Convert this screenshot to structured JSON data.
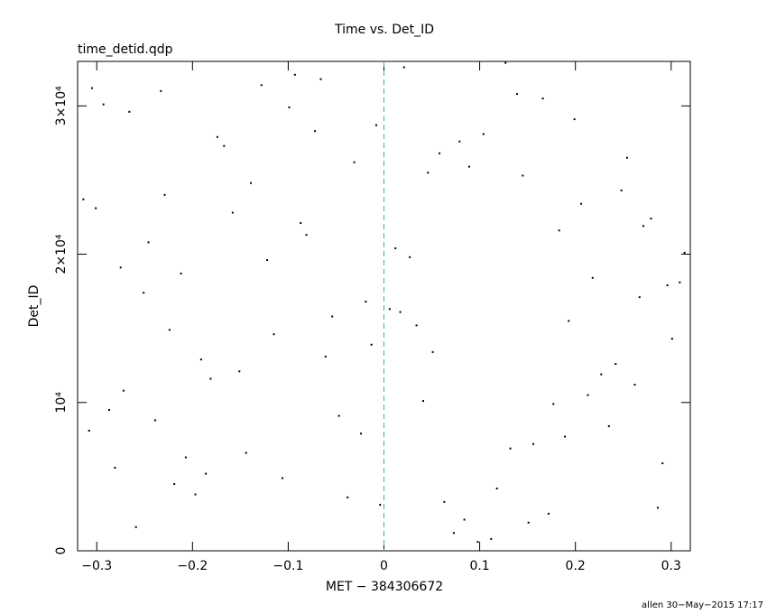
{
  "chart_data": {
    "type": "scatter",
    "title": "Time vs. Det_ID",
    "subtitle": "time_detid.qdp",
    "xlabel": "MET − 384306672",
    "ylabel": "Det_ID",
    "footer": "allen 30−May−2015 17:17",
    "xlim": [
      -0.32,
      0.32
    ],
    "ylim": [
      0,
      33000
    ],
    "xticks": [
      {
        "value": -0.3,
        "label": "−0.3"
      },
      {
        "value": -0.2,
        "label": "−0.2"
      },
      {
        "value": -0.1,
        "label": "−0.1"
      },
      0,
      0.1,
      0.2,
      0.3
    ],
    "yticks": [
      0,
      {
        "value": 10000,
        "label": "10⁴"
      },
      {
        "value": 20000,
        "label": "2×10⁴"
      },
      {
        "value": 30000,
        "label": "3×10⁴"
      }
    ],
    "color": "#000000",
    "reference_line": {
      "x": 0,
      "color": "#4aa3b0"
    },
    "series": [
      {
        "name": "Det_ID",
        "x": [
          -0.305,
          0.118,
          -0.212,
          0.254,
          -0.047,
          0.301,
          -0.158,
          0.073,
          -0.266,
          0.189,
          0.012,
          -0.093,
          0.227,
          -0.281,
          0.145,
          -0.019,
          0.286,
          -0.174,
          0.051,
          -0.239,
          0.166,
          -0.122,
          0.098,
          -0.314,
          0.213,
          -0.066,
          0.034,
          -0.197,
          0.271,
          -0.008,
          0.132,
          -0.251,
          0.242,
          -0.139,
          0.084,
          -0.293,
          0.177,
          -0.031,
          0.309,
          -0.106,
          0.021,
          -0.224,
          0.156,
          -0.081,
          0.262,
          -0.167,
          0.063,
          -0.275,
          0.199,
          -0.054,
          0.112,
          -0.301,
          0.235,
          -0.013,
          0.089,
          -0.186,
          0.296,
          -0.128,
          0.041,
          -0.246,
          0.172,
          -0.072,
          0.006,
          -0.207,
          0.279,
          -0.151,
          0.127,
          -0.287,
          0.218,
          -0.038,
          0.058,
          -0.115,
          0.248,
          -0.259,
          0.139,
          -0.024,
          0.314,
          -0.181,
          0.079,
          -0.219,
          0.193,
          -0.099,
          0.027,
          -0.308,
          0.206,
          -0.061,
          0.151,
          -0.233,
          0.267,
          -0.144,
          0.046,
          -0.272,
          0.183,
          -0.004,
          0.104,
          -0.191,
          0.291,
          -0.087,
          0.017,
          -0.229
        ],
        "values": [
          31200,
          4200,
          18700,
          26500,
          9100,
          14300,
          22800,
          1200,
          29600,
          7700,
          20400,
          32100,
          11900,
          5600,
          25300,
          16800,
          2900,
          27900,
          13400,
          8800,
          30500,
          19600,
          600,
          23700,
          10500,
          31800,
          15200,
          3800,
          21900,
          28700,
          6900,
          17400,
          12600,
          24800,
          2100,
          30100,
          9900,
          26200,
          18100,
          4900,
          32600,
          14900,
          7200,
          21300,
          11200,
          27300,
          3300,
          19100,
          29100,
          15800,
          800,
          23100,
          8400,
          13900,
          25900,
          5200,
          17900,
          31400,
          10100,
          20800,
          2500,
          28300,
          16300,
          6300,
          22400,
          12100,
          32900,
          9500,
          18400,
          3600,
          26800,
          14600,
          24300,
          1600,
          30800,
          7900,
          20100,
          11600,
          27600,
          4500,
          15500,
          29900,
          19800,
          8100,
          23400,
          13100,
          1900,
          31000,
          17100,
          6600,
          25500,
          10800,
          21600,
          3100,
          28100,
          12900,
          5900,
          22100,
          16100,
          24000
        ]
      }
    ]
  }
}
